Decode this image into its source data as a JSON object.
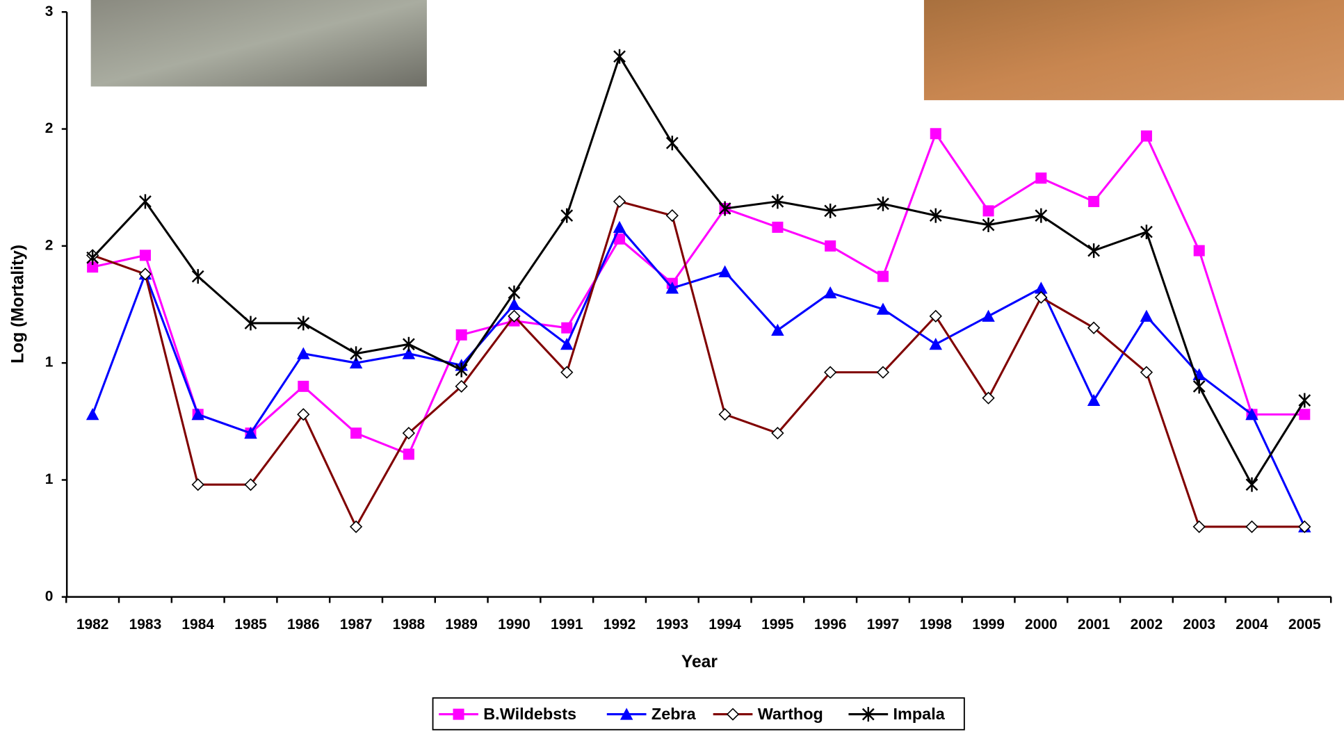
{
  "chart_data": {
    "type": "line",
    "y_label": "Log (Mortality)",
    "x_label": "Year",
    "categories": [
      "1982",
      "1983",
      "1984",
      "1985",
      "1986",
      "1987",
      "1988",
      "1989",
      "1990",
      "1991",
      "1992",
      "1993",
      "1994",
      "1995",
      "1996",
      "1997",
      "1998",
      "1999",
      "2000",
      "2001",
      "2002",
      "2003",
      "2004",
      "2005"
    ],
    "ylim": [
      0,
      2.5
    ],
    "yticks": [
      0,
      {
        "value": 0.5,
        "label": "1"
      },
      1,
      {
        "value": 1.5,
        "label": "2"
      },
      2,
      {
        "value": 2.5,
        "label": "3"
      }
    ],
    "series": [
      {
        "name": "B.Wildebsts",
        "color": "#ff00ff",
        "marker": "square",
        "values": [
          1.41,
          1.46,
          0.78,
          0.7,
          0.9,
          0.7,
          0.61,
          1.12,
          1.18,
          1.15,
          1.53,
          1.34,
          1.66,
          1.58,
          1.5,
          1.37,
          1.98,
          1.65,
          1.79,
          1.69,
          1.97,
          1.48,
          0.78,
          0.78
        ]
      },
      {
        "name": "Zebra",
        "color": "#0000ff",
        "marker": "triangle",
        "values": [
          0.78,
          1.38,
          0.78,
          0.7,
          1.04,
          1.0,
          1.04,
          0.99,
          1.25,
          1.08,
          1.58,
          1.32,
          1.39,
          1.14,
          1.3,
          1.23,
          1.08,
          1.2,
          1.32,
          0.84,
          1.2,
          0.95,
          0.78,
          0.3
        ]
      },
      {
        "name": "Warthog",
        "color": "#800000",
        "marker": "diamond",
        "values": [
          1.46,
          1.38,
          0.48,
          0.48,
          0.78,
          0.3,
          0.7,
          0.9,
          1.2,
          0.96,
          1.69,
          1.63,
          0.78,
          0.7,
          0.96,
          0.96,
          1.2,
          0.85,
          1.28,
          1.15,
          0.96,
          0.3,
          0.3,
          0.3
        ]
      },
      {
        "name": "Impala",
        "color": "#000000",
        "marker": "star",
        "values": [
          1.45,
          1.69,
          1.37,
          1.17,
          1.17,
          1.04,
          1.08,
          0.97,
          1.3,
          1.63,
          2.31,
          1.94,
          1.66,
          1.69,
          1.65,
          1.68,
          1.63,
          1.59,
          1.63,
          1.48,
          1.56,
          0.9,
          0.48,
          0.84
        ]
      }
    ]
  }
}
